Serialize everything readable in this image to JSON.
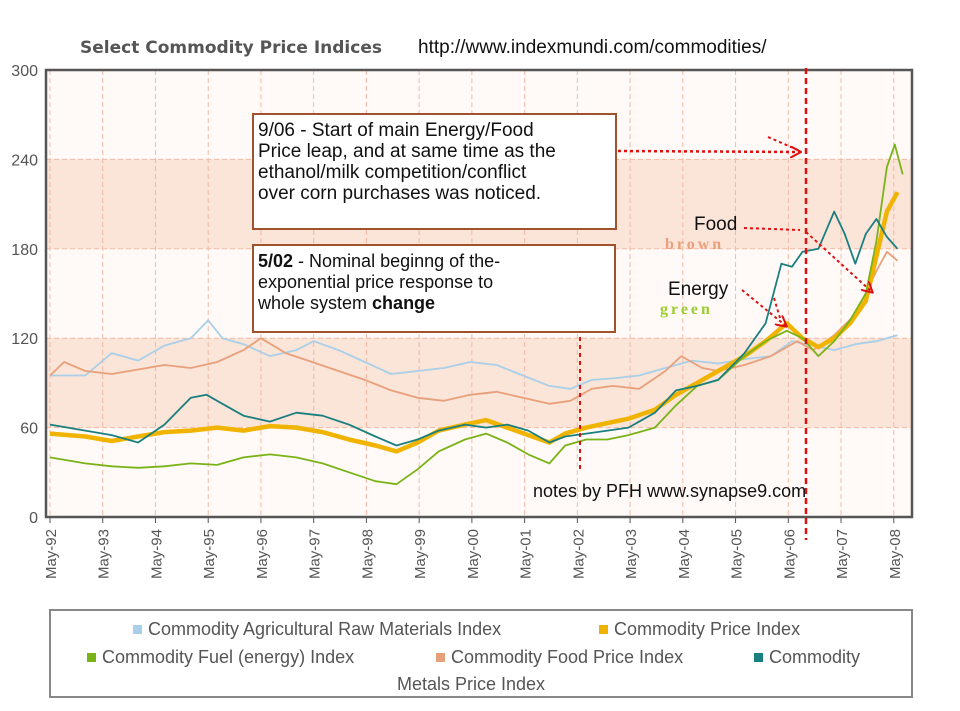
{
  "header": {
    "title": "Select Commodity Price Indices",
    "url": "http://www.indexmundi.com/commodities/"
  },
  "notes": {
    "box1_lines": [
      "9/06 - Start of main Energy/Food",
      "Price leap, and at same time as the",
      "ethanol/milk competition/conflict",
      "over corn purchases was noticed."
    ],
    "box2_date": "5/02",
    "box2_line1_rest": " - Nominal beginng of  the-",
    "box2_line2": "exponential price response to",
    "box2_line3_start": "whole system ",
    "box2_line3_bold": "change",
    "credit": "notes by PFH www.synapse9.com",
    "food_label": "Food",
    "food_sub": "brown",
    "energy_label": "Energy",
    "energy_sub": "green"
  },
  "colors": {
    "raw": "#a9cfe9",
    "price": "#f0b400",
    "fuel": "#7ab317",
    "food": "#e8a07a",
    "metals": "#1a7f7f",
    "annotation": "#dd1111",
    "box_border": "#a0522d",
    "band": "#fbe4d8"
  },
  "legend": {
    "raw": "Commodity Agricultural Raw Materials Index",
    "price": "Commodity Price Index",
    "fuel": "Commodity Fuel (energy) Index",
    "food": "Commodity Food Price Index",
    "metals_1": "Commodity",
    "metals_2": "Metals Price Index"
  },
  "chart_data": {
    "type": "line",
    "x_ticks": [
      "May-92",
      "May-93",
      "May-94",
      "May-95",
      "May-96",
      "May-97",
      "May-98",
      "May-99",
      "May-00",
      "May-01",
      "May-02",
      "May-03",
      "May-04",
      "May-05",
      "May-06",
      "May-07",
      "May-08"
    ],
    "y_ticks": [
      0,
      60,
      120,
      180,
      240,
      300
    ],
    "ylim": [
      0,
      300
    ],
    "xlim": [
      1992.33,
      2008.5
    ],
    "grid": true,
    "legend_position": "bottom",
    "series": [
      {
        "name": "Commodity Agricultural Raw Materials Index",
        "key": "raw",
        "x": [
          1992.33,
          1993.0,
          1993.5,
          1994.0,
          1994.5,
          1995.0,
          1995.33,
          1995.6,
          1996.0,
          1996.5,
          1997.0,
          1997.33,
          1997.8,
          1998.3,
          1998.8,
          1999.3,
          1999.8,
          2000.3,
          2000.8,
          2001.3,
          2001.8,
          2002.2,
          2002.6,
          2003.0,
          2003.5,
          2004.0,
          2004.5,
          2005.0,
          2005.5,
          2006.0,
          2006.4,
          2006.8,
          2007.2,
          2007.6,
          2008.0,
          2008.4
        ],
        "y": [
          95,
          95,
          110,
          105,
          115,
          120,
          132,
          120,
          116,
          108,
          112,
          118,
          112,
          104,
          96,
          98,
          100,
          104,
          102,
          95,
          88,
          86,
          92,
          93,
          95,
          100,
          105,
          103,
          106,
          108,
          118,
          115,
          112,
          116,
          118,
          122
        ]
      },
      {
        "name": "Commodity Food Price Index",
        "key": "food",
        "x": [
          1992.33,
          1992.6,
          1993.0,
          1993.5,
          1994.0,
          1994.5,
          1995.0,
          1995.5,
          1996.0,
          1996.33,
          1996.8,
          1997.3,
          1997.8,
          1998.3,
          1998.8,
          1999.3,
          1999.8,
          2000.3,
          2000.8,
          2001.3,
          2001.8,
          2002.2,
          2002.6,
          2003.0,
          2003.5,
          2004.0,
          2004.3,
          2004.7,
          2005.0,
          2005.5,
          2006.0,
          2006.5,
          2006.8,
          2007.2,
          2007.6,
          2008.0,
          2008.2,
          2008.4
        ],
        "y": [
          95,
          104,
          98,
          96,
          99,
          102,
          100,
          104,
          112,
          120,
          110,
          104,
          98,
          92,
          85,
          80,
          78,
          82,
          84,
          80,
          76,
          78,
          86,
          88,
          86,
          98,
          108,
          100,
          98,
          102,
          108,
          118,
          112,
          122,
          136,
          165,
          178,
          172
        ]
      },
      {
        "name": "Commodity Price Index",
        "key": "price",
        "x": [
          1992.33,
          1993.0,
          1993.5,
          1994.0,
          1994.5,
          1995.0,
          1995.5,
          1996.0,
          1996.5,
          1997.0,
          1997.5,
          1998.0,
          1998.5,
          1998.9,
          1999.3,
          1999.7,
          2000.2,
          2000.6,
          2001.0,
          2001.4,
          2001.8,
          2002.1,
          2002.5,
          2002.9,
          2003.3,
          2003.8,
          2004.2,
          2004.6,
          2005.0,
          2005.5,
          2005.9,
          2006.3,
          2006.6,
          2006.9,
          2007.2,
          2007.5,
          2007.8,
          2008.0,
          2008.2,
          2008.4
        ],
        "y": [
          56,
          54,
          51,
          54,
          57,
          58,
          60,
          58,
          61,
          60,
          57,
          52,
          48,
          44,
          50,
          58,
          62,
          65,
          60,
          55,
          50,
          56,
          60,
          63,
          66,
          72,
          82,
          90,
          98,
          108,
          118,
          130,
          120,
          114,
          120,
          130,
          145,
          175,
          205,
          218
        ]
      },
      {
        "name": "Commodity Fuel (energy) Index",
        "key": "fuel",
        "x": [
          1992.33,
          1993.0,
          1993.5,
          1994.0,
          1994.5,
          1995.0,
          1995.5,
          1996.0,
          1996.5,
          1997.0,
          1997.5,
          1998.0,
          1998.5,
          1998.9,
          1999.3,
          1999.7,
          2000.2,
          2000.6,
          2001.0,
          2001.4,
          2001.8,
          2002.1,
          2002.5,
          2002.9,
          2003.3,
          2003.8,
          2004.2,
          2004.6,
          2005.0,
          2005.5,
          2005.9,
          2006.3,
          2006.6,
          2006.9,
          2007.2,
          2007.5,
          2007.8,
          2008.0,
          2008.2,
          2008.35,
          2008.5
        ],
        "y": [
          40,
          36,
          34,
          33,
          34,
          36,
          35,
          40,
          42,
          40,
          36,
          30,
          24,
          22,
          32,
          44,
          52,
          56,
          50,
          42,
          36,
          48,
          52,
          52,
          55,
          60,
          75,
          88,
          92,
          108,
          118,
          125,
          120,
          108,
          118,
          132,
          150,
          185,
          235,
          250,
          230
        ]
      },
      {
        "name": "Commodity Metals Price Index",
        "key": "metals",
        "x": [
          1992.33,
          1993.0,
          1993.5,
          1994.0,
          1994.5,
          1995.0,
          1995.3,
          1995.6,
          1996.0,
          1996.5,
          1997.0,
          1997.5,
          1998.0,
          1998.5,
          1998.9,
          1999.3,
          1999.7,
          2000.2,
          2000.6,
          2001.0,
          2001.4,
          2001.8,
          2002.1,
          2002.5,
          2002.9,
          2003.3,
          2003.8,
          2004.2,
          2004.6,
          2005.0,
          2005.5,
          2005.9,
          2006.2,
          2006.4,
          2006.6,
          2006.9,
          2007.2,
          2007.4,
          2007.6,
          2007.8,
          2008.0,
          2008.2,
          2008.4
        ],
        "y": [
          62,
          58,
          55,
          50,
          62,
          80,
          82,
          76,
          68,
          64,
          70,
          68,
          62,
          54,
          48,
          52,
          58,
          62,
          60,
          62,
          58,
          50,
          54,
          56,
          58,
          60,
          70,
          85,
          88,
          92,
          110,
          130,
          170,
          168,
          178,
          180,
          205,
          190,
          170,
          190,
          200,
          188,
          180
        ]
      }
    ]
  }
}
